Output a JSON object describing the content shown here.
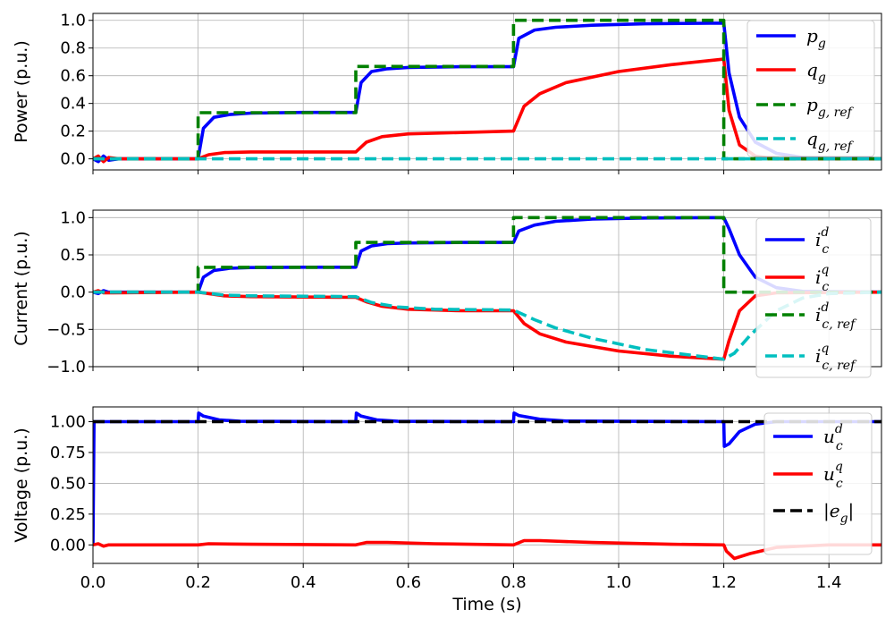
{
  "chart_data": [
    {
      "type": "line",
      "ylabel": "Power (p.u.)",
      "xlim": [
        0,
        1.5
      ],
      "ylim": [
        -0.08,
        1.05
      ],
      "yticks": [
        "0.0",
        "0.2",
        "0.4",
        "0.6",
        "0.8",
        "1.0"
      ],
      "ytick_values": [
        0,
        0.2,
        0.4,
        0.6,
        0.8,
        1.0
      ],
      "grid": true,
      "legend_position": "right",
      "series": [
        {
          "name": "p_g",
          "legend": {
            "base": "p",
            "sub": "g",
            "sup": ""
          },
          "color": "#0000ff",
          "style": "solid",
          "x": [
            0,
            0.01,
            0.02,
            0.03,
            0.05,
            0.2,
            0.21,
            0.23,
            0.26,
            0.3,
            0.4,
            0.5,
            0.51,
            0.53,
            0.56,
            0.6,
            0.7,
            0.8,
            0.81,
            0.84,
            0.88,
            0.95,
            1.05,
            1.2,
            1.21,
            1.23,
            1.26,
            1.3,
            1.35,
            1.5
          ],
          "y": [
            0,
            -0.02,
            0.02,
            -0.01,
            0,
            0,
            0.22,
            0.3,
            0.32,
            0.33,
            0.335,
            0.335,
            0.55,
            0.63,
            0.65,
            0.66,
            0.665,
            0.665,
            0.87,
            0.93,
            0.95,
            0.965,
            0.975,
            0.98,
            0.62,
            0.3,
            0.12,
            0.04,
            0.01,
            0
          ]
        },
        {
          "name": "q_g",
          "legend": {
            "base": "q",
            "sub": "g",
            "sup": ""
          },
          "color": "#ff0000",
          "style": "solid",
          "x": [
            0,
            0.01,
            0.02,
            0.03,
            0.05,
            0.2,
            0.22,
            0.25,
            0.3,
            0.5,
            0.52,
            0.55,
            0.6,
            0.7,
            0.8,
            0.82,
            0.85,
            0.9,
            1.0,
            1.1,
            1.2,
            1.21,
            1.23,
            1.26,
            1.3,
            1.5
          ],
          "y": [
            0,
            0.02,
            -0.02,
            0.01,
            0,
            0,
            0.03,
            0.045,
            0.05,
            0.05,
            0.12,
            0.16,
            0.18,
            0.19,
            0.2,
            0.38,
            0.47,
            0.55,
            0.63,
            0.68,
            0.72,
            0.35,
            0.1,
            0.02,
            0,
            0
          ]
        },
        {
          "name": "p_g,ref",
          "legend": {
            "base": "p",
            "sub": "g, ref",
            "sup": ""
          },
          "color": "#008000",
          "style": "dashed",
          "x": [
            0,
            0.2,
            0.2,
            0.5,
            0.5,
            0.8,
            0.8,
            1.2,
            1.2,
            1.5
          ],
          "y": [
            0,
            0,
            0.333,
            0.333,
            0.667,
            0.667,
            1.0,
            1.0,
            0,
            0
          ]
        },
        {
          "name": "q_g,ref",
          "legend": {
            "base": "q",
            "sub": "g, ref",
            "sup": ""
          },
          "color": "#00bfbf",
          "style": "dashed",
          "x": [
            0,
            1.5
          ],
          "y": [
            0,
            0
          ]
        }
      ]
    },
    {
      "type": "line",
      "ylabel": "Current (p.u.)",
      "xlim": [
        0,
        1.5
      ],
      "ylim": [
        -1.0,
        1.1
      ],
      "yticks": [
        "−1.0",
        "−0.5",
        "0.0",
        "0.5",
        "1.0"
      ],
      "ytick_values": [
        -1.0,
        -0.5,
        0,
        0.5,
        1.0
      ],
      "grid": true,
      "legend_position": "right",
      "series": [
        {
          "name": "i_c^d",
          "legend": {
            "base": "i",
            "sub": "c",
            "sup": "d"
          },
          "color": "#0000ff",
          "style": "solid",
          "x": [
            0,
            0.01,
            0.02,
            0.03,
            0.2,
            0.21,
            0.23,
            0.26,
            0.3,
            0.4,
            0.5,
            0.51,
            0.53,
            0.56,
            0.6,
            0.7,
            0.8,
            0.81,
            0.84,
            0.88,
            0.95,
            1.05,
            1.2,
            1.21,
            1.23,
            1.26,
            1.3,
            1.35,
            1.5
          ],
          "y": [
            0,
            -0.02,
            0.02,
            0,
            0,
            0.2,
            0.29,
            0.32,
            0.33,
            0.335,
            0.335,
            0.55,
            0.62,
            0.65,
            0.66,
            0.667,
            0.667,
            0.82,
            0.9,
            0.95,
            0.98,
            0.995,
            1.0,
            0.85,
            0.5,
            0.2,
            0.06,
            0.01,
            0
          ]
        },
        {
          "name": "i_c^q",
          "legend": {
            "base": "i",
            "sub": "c",
            "sup": "q"
          },
          "color": "#ff0000",
          "style": "solid",
          "x": [
            0,
            0.01,
            0.02,
            0.2,
            0.25,
            0.3,
            0.5,
            0.52,
            0.55,
            0.6,
            0.7,
            0.8,
            0.82,
            0.85,
            0.9,
            1.0,
            1.1,
            1.2,
            1.21,
            1.23,
            1.26,
            1.3,
            1.5
          ],
          "y": [
            0,
            0.02,
            -0.01,
            0,
            -0.05,
            -0.06,
            -0.07,
            -0.13,
            -0.19,
            -0.23,
            -0.25,
            -0.25,
            -0.42,
            -0.56,
            -0.67,
            -0.79,
            -0.86,
            -0.9,
            -0.65,
            -0.25,
            -0.05,
            -0.01,
            0
          ]
        },
        {
          "name": "i_c,ref^d",
          "legend": {
            "base": "i",
            "sub": "c, ref",
            "sup": "d"
          },
          "color": "#008000",
          "style": "dashed",
          "x": [
            0,
            0.2,
            0.2,
            0.5,
            0.5,
            0.8,
            0.8,
            1.2,
            1.2,
            1.5
          ],
          "y": [
            0,
            0,
            0.333,
            0.333,
            0.667,
            0.667,
            1.0,
            1.0,
            0,
            0
          ]
        },
        {
          "name": "i_c,ref^q",
          "legend": {
            "base": "i",
            "sub": "c, ref",
            "sup": "q"
          },
          "color": "#00bfbf",
          "style": "dashed",
          "x": [
            0,
            0.2,
            0.25,
            0.3,
            0.5,
            0.53,
            0.58,
            0.65,
            0.8,
            0.84,
            0.88,
            0.95,
            1.05,
            1.2,
            1.22,
            1.25,
            1.3,
            1.35,
            1.4,
            1.5
          ],
          "y": [
            0,
            0,
            -0.04,
            -0.05,
            -0.06,
            -0.14,
            -0.2,
            -0.23,
            -0.24,
            -0.37,
            -0.48,
            -0.62,
            -0.77,
            -0.9,
            -0.82,
            -0.58,
            -0.25,
            -0.08,
            -0.02,
            0
          ]
        }
      ]
    },
    {
      "type": "line",
      "ylabel": "Voltage (p.u.)",
      "xlabel": "Time (s)",
      "xlim": [
        0,
        1.5
      ],
      "ylim": [
        -0.15,
        1.12
      ],
      "yticks": [
        "0.00",
        "0.25",
        "0.50",
        "0.75",
        "1.00"
      ],
      "ytick_values": [
        0,
        0.25,
        0.5,
        0.75,
        1.0
      ],
      "xticks": [
        "0.0",
        "0.2",
        "0.4",
        "0.6",
        "0.8",
        "1.0",
        "1.2",
        "1.4"
      ],
      "xtick_values": [
        0,
        0.2,
        0.4,
        0.6,
        0.8,
        1.0,
        1.2,
        1.4
      ],
      "grid": true,
      "legend_position": "upper right",
      "series": [
        {
          "name": "u_c^d",
          "legend": {
            "base": "u",
            "sub": "c",
            "sup": "d"
          },
          "color": "#0000ff",
          "style": "solid",
          "x": [
            0,
            0.002,
            0.004,
            0.2,
            0.201,
            0.21,
            0.24,
            0.28,
            0.5,
            0.501,
            0.51,
            0.54,
            0.58,
            0.8,
            0.801,
            0.81,
            0.85,
            0.9,
            1.2,
            1.201,
            1.21,
            1.23,
            1.26,
            1.3,
            1.5
          ],
          "y": [
            0,
            1.0,
            1.0,
            1.0,
            1.07,
            1.045,
            1.015,
            1.003,
            1.0,
            1.07,
            1.045,
            1.015,
            1.003,
            1.0,
            1.07,
            1.05,
            1.02,
            1.005,
            1.0,
            0.8,
            0.82,
            0.92,
            0.98,
            1.0,
            1.0
          ]
        },
        {
          "name": "u_c^q",
          "legend": {
            "base": "u",
            "sub": "c",
            "sup": "q"
          },
          "color": "#ff0000",
          "style": "solid",
          "x": [
            0,
            0.01,
            0.02,
            0.03,
            0.2,
            0.22,
            0.3,
            0.5,
            0.52,
            0.56,
            0.65,
            0.8,
            0.82,
            0.85,
            0.95,
            1.1,
            1.2,
            1.205,
            1.22,
            1.25,
            1.3,
            1.4,
            1.5
          ],
          "y": [
            0,
            0.01,
            -0.01,
            0,
            0,
            0.01,
            0.005,
            0,
            0.02,
            0.02,
            0.01,
            0,
            0.035,
            0.035,
            0.02,
            0.005,
            0,
            -0.05,
            -0.11,
            -0.07,
            -0.02,
            0,
            0
          ]
        },
        {
          "name": "|e_g|",
          "legend": {
            "base": "|e",
            "sub": "g",
            "sup": "",
            "suffix": "|"
          },
          "color": "#000000",
          "style": "dashed",
          "x": [
            0,
            1.5
          ],
          "y": [
            1.0,
            1.0
          ]
        }
      ]
    }
  ]
}
